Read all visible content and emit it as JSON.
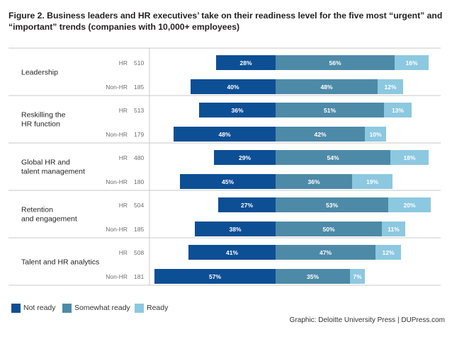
{
  "title": "Figure 2. Business leaders and HR executives’ take on their readiness level for the five most “urgent” and “important” trends (companies with 10,000+ employees)",
  "credit": "Graphic: Deloitte University Press  |  DUPress.com",
  "colors": {
    "not_ready": "#0d4f95",
    "somewhat_ready": "#4d8aa8",
    "ready": "#8cc8e0",
    "divider": "#c8c8c8",
    "label_text": "#231f20",
    "n_text": "#6d6d6d"
  },
  "chart_data": {
    "type": "bar",
    "orientation": "horizontal-diverging",
    "series": [
      {
        "name": "Not ready",
        "key": "not_ready"
      },
      {
        "name": "Somewhat ready",
        "key": "somewhat_ready"
      },
      {
        "name": "Ready",
        "key": "ready"
      }
    ],
    "legend_position": "bottom-left",
    "groups": [
      {
        "label": [
          "Leadership"
        ],
        "rows": [
          {
            "respondent": "HR",
            "n": "510",
            "not_ready": 28,
            "somewhat_ready": 56,
            "ready": 16
          },
          {
            "respondent": "Non-HR",
            "n": "185",
            "not_ready": 40,
            "somewhat_ready": 48,
            "ready": 12
          }
        ]
      },
      {
        "label": [
          "Reskilling the",
          "HR function"
        ],
        "rows": [
          {
            "respondent": "HR",
            "n": "513",
            "not_ready": 36,
            "somewhat_ready": 51,
            "ready": 13
          },
          {
            "respondent": "Non-HR",
            "n": "179",
            "not_ready": 48,
            "somewhat_ready": 42,
            "ready": 10
          }
        ]
      },
      {
        "label": [
          "Global HR and",
          "talent management"
        ],
        "rows": [
          {
            "respondent": "HR",
            "n": "480",
            "not_ready": 29,
            "somewhat_ready": 54,
            "ready": 18
          },
          {
            "respondent": "Non-HR",
            "n": "180",
            "not_ready": 45,
            "somewhat_ready": 36,
            "ready": 19
          }
        ]
      },
      {
        "label": [
          "Retention",
          "and engagement"
        ],
        "rows": [
          {
            "respondent": "HR",
            "n": "504",
            "not_ready": 27,
            "somewhat_ready": 53,
            "ready": 20
          },
          {
            "respondent": "Non-HR",
            "n": "185",
            "not_ready": 38,
            "somewhat_ready": 50,
            "ready": 11
          }
        ]
      },
      {
        "label": [
          "Talent and HR analytics"
        ],
        "rows": [
          {
            "respondent": "HR",
            "n": "508",
            "not_ready": 41,
            "somewhat_ready": 47,
            "ready": 12
          },
          {
            "respondent": "Non-HR",
            "n": "181",
            "not_ready": 57,
            "somewhat_ready": 35,
            "ready": 7
          }
        ]
      }
    ]
  }
}
